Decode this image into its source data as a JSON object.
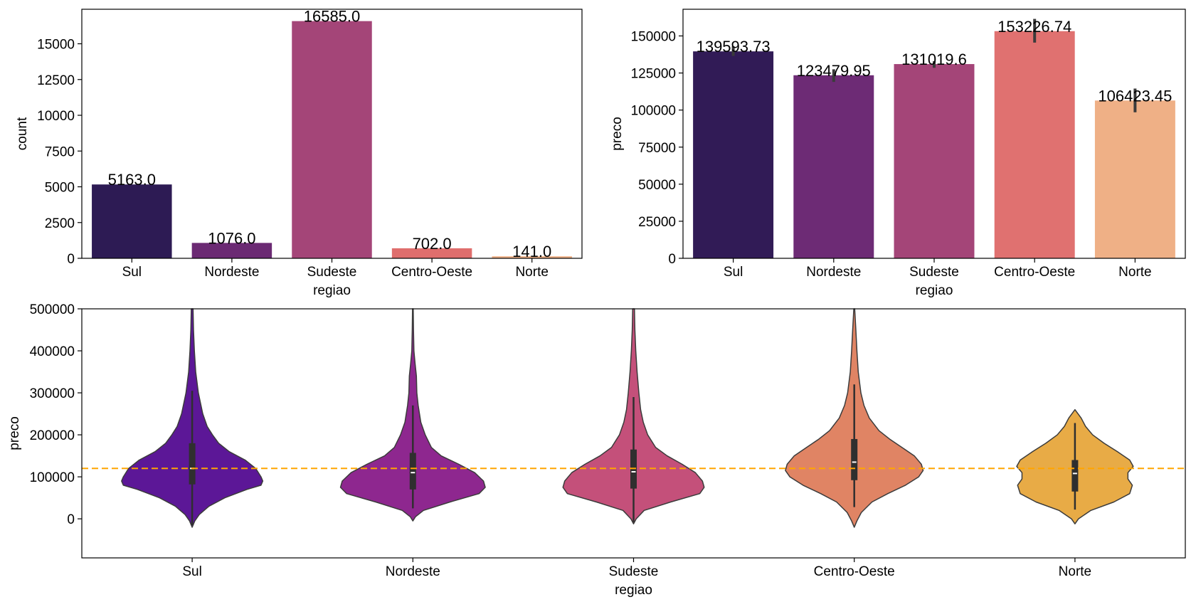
{
  "chart_data": [
    {
      "type": "bar",
      "categories": [
        "Sul",
        "Nordeste",
        "Sudeste",
        "Centro-Oeste",
        "Norte"
      ],
      "values": [
        5163.0,
        1076.0,
        16585.0,
        702.0,
        141.0
      ],
      "data_labels": [
        "5163.0",
        "1076.0",
        "16585.0",
        "702.0",
        "141.0"
      ],
      "colors": [
        "#2d1b54",
        "#6b2a73",
        "#a44578",
        "#df6e6d",
        "#efb187"
      ],
      "xlabel": "regiao",
      "ylabel": "count",
      "ylim": [
        0,
        17414
      ],
      "yticks": [
        0,
        2500,
        5000,
        7500,
        10000,
        12500,
        15000
      ],
      "grid": false
    },
    {
      "type": "bar",
      "categories": [
        "Sul",
        "Nordeste",
        "Sudeste",
        "Centro-Oeste",
        "Norte"
      ],
      "values": [
        139593.73,
        123479.95,
        131019.6,
        153226.74,
        106423.45
      ],
      "data_labels": [
        "139593.73",
        "123479.95",
        "131019.6",
        "153226.74",
        "106423.45"
      ],
      "error_bars": [
        [
          136500,
          143000
        ],
        [
          119000,
          127500
        ],
        [
          128500,
          133000
        ],
        [
          145500,
          161500
        ],
        [
          98500,
          114500
        ]
      ],
      "colors": [
        "#311b56",
        "#6d2b75",
        "#a44578",
        "#e07170",
        "#efb086"
      ],
      "xlabel": "regiao",
      "ylabel": "preco",
      "ylim": [
        0,
        168000
      ],
      "yticks": [
        0,
        25000,
        50000,
        75000,
        100000,
        125000,
        150000
      ],
      "grid": false
    },
    {
      "type": "violin",
      "categories": [
        "Sul",
        "Nordeste",
        "Sudeste",
        "Centro-Oeste",
        "Norte"
      ],
      "colors": [
        "#5c1797",
        "#8e278f",
        "#c4507a",
        "#e08464",
        "#e8ab46"
      ],
      "xlabel": "regiao",
      "ylabel": "preco",
      "ylim": [
        -93000,
        500000
      ],
      "yticks": [
        0,
        100000,
        200000,
        300000,
        400000,
        500000
      ],
      "reference_line": {
        "y": 120000,
        "color": "#ffa500",
        "style": "dashed"
      },
      "series": [
        {
          "category": "Sul",
          "min": -20000,
          "max": 500000,
          "q1": 82000,
          "median": 120000,
          "q3": 180000,
          "whisker_low": -15000,
          "whisker_high": 305000,
          "density": [
            [
              -20000,
              0.0
            ],
            [
              -5000,
              0.03
            ],
            [
              10000,
              0.08
            ],
            [
              30000,
              0.19
            ],
            [
              50000,
              0.37
            ],
            [
              70000,
              0.62
            ],
            [
              80000,
              0.78
            ],
            [
              90000,
              0.8
            ],
            [
              100000,
              0.78
            ],
            [
              120000,
              0.72
            ],
            [
              140000,
              0.6
            ],
            [
              160000,
              0.42
            ],
            [
              180000,
              0.3
            ],
            [
              200000,
              0.23
            ],
            [
              220000,
              0.17
            ],
            [
              250000,
              0.12
            ],
            [
              280000,
              0.09
            ],
            [
              300000,
              0.07
            ],
            [
              350000,
              0.04
            ],
            [
              400000,
              0.025
            ],
            [
              450000,
              0.015
            ],
            [
              500000,
              0.01
            ]
          ]
        },
        {
          "category": "Nordeste",
          "min": -5000,
          "max": 500000,
          "q1": 70000,
          "median": 110000,
          "q3": 157000,
          "whisker_low": 25000,
          "whisker_high": 270000,
          "density": [
            [
              -5000,
              0.0
            ],
            [
              5000,
              0.03
            ],
            [
              20000,
              0.12
            ],
            [
              40000,
              0.42
            ],
            [
              60000,
              0.75
            ],
            [
              75000,
              0.82
            ],
            [
              90000,
              0.8
            ],
            [
              110000,
              0.7
            ],
            [
              130000,
              0.52
            ],
            [
              150000,
              0.32
            ],
            [
              170000,
              0.21
            ],
            [
              200000,
              0.14
            ],
            [
              230000,
              0.09
            ],
            [
              270000,
              0.06
            ],
            [
              300000,
              0.045
            ],
            [
              340000,
              0.04
            ],
            [
              370000,
              0.025
            ],
            [
              400000,
              0.012
            ],
            [
              450000,
              0.007
            ],
            [
              500000,
              0.004
            ]
          ]
        },
        {
          "category": "Sudeste",
          "min": -12000,
          "max": 500000,
          "q1": 72000,
          "median": 112000,
          "q3": 165000,
          "whisker_low": -8000,
          "whisker_high": 290000,
          "density": [
            [
              -12000,
              0.0
            ],
            [
              0,
              0.03
            ],
            [
              20000,
              0.12
            ],
            [
              40000,
              0.42
            ],
            [
              60000,
              0.75
            ],
            [
              75000,
              0.8
            ],
            [
              90000,
              0.78
            ],
            [
              110000,
              0.7
            ],
            [
              130000,
              0.55
            ],
            [
              150000,
              0.38
            ],
            [
              170000,
              0.25
            ],
            [
              200000,
              0.16
            ],
            [
              230000,
              0.11
            ],
            [
              260000,
              0.08
            ],
            [
              300000,
              0.06
            ],
            [
              350000,
              0.04
            ],
            [
              400000,
              0.025
            ],
            [
              450000,
              0.015
            ],
            [
              500000,
              0.01
            ]
          ]
        },
        {
          "category": "Centro-Oeste",
          "min": -20000,
          "max": 500000,
          "q1": 92000,
          "median": 135000,
          "q3": 190000,
          "whisker_low": 28000,
          "whisker_high": 320000,
          "density": [
            [
              -20000,
              0.0
            ],
            [
              -5000,
              0.03
            ],
            [
              15000,
              0.08
            ],
            [
              40000,
              0.2
            ],
            [
              60000,
              0.38
            ],
            [
              80000,
              0.58
            ],
            [
              100000,
              0.73
            ],
            [
              115000,
              0.78
            ],
            [
              130000,
              0.76
            ],
            [
              150000,
              0.68
            ],
            [
              170000,
              0.54
            ],
            [
              190000,
              0.4
            ],
            [
              210000,
              0.28
            ],
            [
              240000,
              0.17
            ],
            [
              270000,
              0.11
            ],
            [
              300000,
              0.075
            ],
            [
              350000,
              0.045
            ],
            [
              400000,
              0.03
            ],
            [
              450000,
              0.018
            ],
            [
              500000,
              0.005
            ]
          ]
        },
        {
          "category": "Norte",
          "min": -12000,
          "max": 260000,
          "q1": 65000,
          "median": 108000,
          "q3": 140000,
          "whisker_low": 22000,
          "whisker_high": 228000,
          "density": [
            [
              -12000,
              0.0
            ],
            [
              0,
              0.04
            ],
            [
              20000,
              0.18
            ],
            [
              40000,
              0.44
            ],
            [
              60000,
              0.62
            ],
            [
              80000,
              0.65
            ],
            [
              95000,
              0.6
            ],
            [
              110000,
              0.6
            ],
            [
              125000,
              0.66
            ],
            [
              140000,
              0.62
            ],
            [
              160000,
              0.48
            ],
            [
              180000,
              0.33
            ],
            [
              200000,
              0.2
            ],
            [
              220000,
              0.12
            ],
            [
              240000,
              0.07
            ],
            [
              260000,
              0.0
            ]
          ]
        }
      ]
    }
  ]
}
